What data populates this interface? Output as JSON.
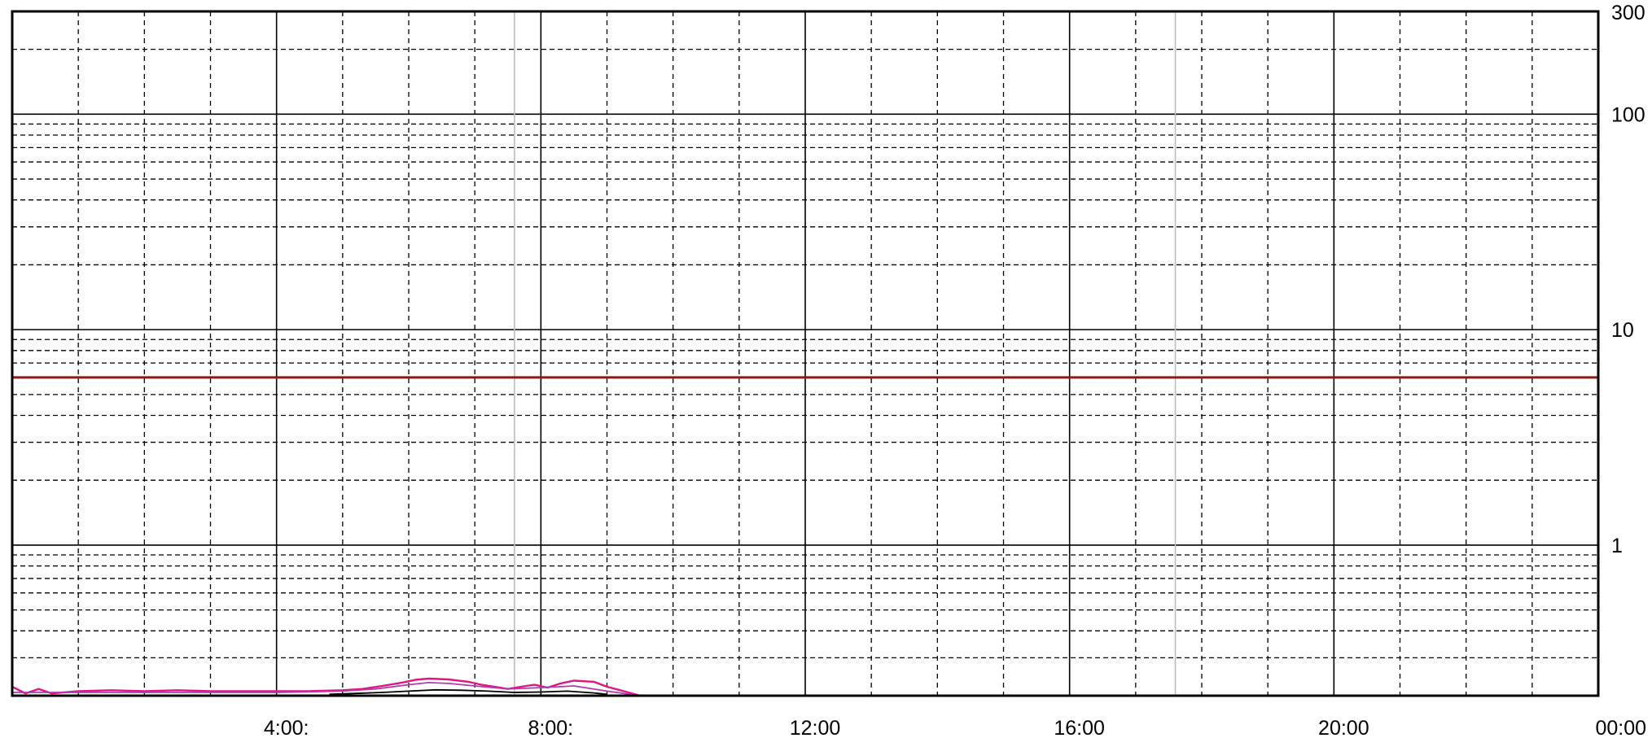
{
  "chart_data": {
    "type": "line",
    "title": "",
    "xlabel": "",
    "ylabel": "",
    "y_scale": "log",
    "ylim": [
      0.2,
      300
    ],
    "y_tick_labels": [
      {
        "value": 300,
        "label": "300"
      },
      {
        "value": 100,
        "label": "100"
      },
      {
        "value": 10,
        "label": "10"
      },
      {
        "value": 1,
        "label": "1"
      }
    ],
    "x_unit": "hours",
    "xlim": [
      0,
      24
    ],
    "x_tick_labels": [
      {
        "value": 4,
        "label": "4:00:"
      },
      {
        "value": 8,
        "label": "8:00:"
      },
      {
        "value": 12,
        "label": "12:00"
      },
      {
        "value": 16,
        "label": "16:00"
      },
      {
        "value": 20,
        "label": "20:00"
      },
      {
        "value": 24,
        "label": "00:00"
      }
    ],
    "grid": true,
    "reference_lines": [
      {
        "value": 6,
        "color": "#8b1a1a"
      }
    ],
    "highlight_vertical_lines_x": [
      7.6,
      17.6
    ],
    "series": [
      {
        "color": "#e0167a",
        "x": [
          0.0,
          0.2,
          0.4,
          0.6,
          1.0,
          1.5,
          2.0,
          2.5,
          3.0,
          3.5,
          4.0,
          4.5,
          5.0,
          5.3,
          5.6,
          5.9,
          6.1,
          6.3,
          6.6,
          6.9,
          7.1,
          7.3,
          7.5,
          7.7,
          7.9,
          8.1,
          8.3,
          8.5,
          8.8,
          9.0,
          9.3,
          9.5,
          12.0,
          16.0,
          20.0,
          24.0
        ],
        "y": [
          0.22,
          0.205,
          0.215,
          0.205,
          0.21,
          0.212,
          0.21,
          0.212,
          0.21,
          0.21,
          0.21,
          0.21,
          0.212,
          0.215,
          0.222,
          0.23,
          0.237,
          0.24,
          0.238,
          0.232,
          0.225,
          0.22,
          0.215,
          0.22,
          0.225,
          0.218,
          0.228,
          0.235,
          0.232,
          0.22,
          0.208,
          0.2,
          0.2,
          0.2,
          0.2,
          0.2
        ]
      },
      {
        "color": "#b03ab0",
        "x": [
          0.0,
          1.0,
          2.0,
          3.0,
          4.0,
          5.0,
          5.5,
          6.0,
          6.3,
          6.6,
          7.0,
          7.5,
          8.0,
          8.5,
          9.0,
          9.5,
          12.0,
          24.0
        ],
        "y": [
          0.207,
          0.207,
          0.207,
          0.207,
          0.207,
          0.21,
          0.215,
          0.225,
          0.23,
          0.228,
          0.222,
          0.215,
          0.218,
          0.222,
          0.21,
          0.2,
          0.2,
          0.2
        ]
      },
      {
        "color": "#000000",
        "x": [
          4.8,
          5.2,
          5.6,
          6.0,
          6.4,
          6.8,
          7.2,
          7.6,
          8.0,
          8.4,
          8.8,
          9.0
        ],
        "y": [
          0.203,
          0.205,
          0.207,
          0.21,
          0.213,
          0.212,
          0.21,
          0.207,
          0.208,
          0.21,
          0.206,
          0.203
        ]
      }
    ]
  }
}
